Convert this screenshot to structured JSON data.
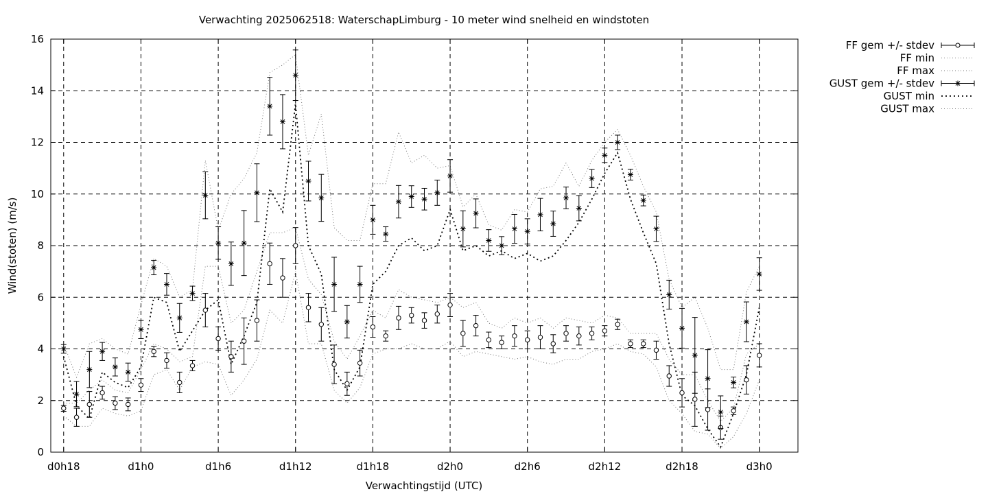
{
  "chart_data": {
    "type": "line",
    "title": "Verwachting 2025062518: WaterschapLimburg - 10 meter wind snelheid en windstoten",
    "xlabel": "Verwachtingstijd (UTC)",
    "ylabel": "Wind(stoten) (m/s)",
    "ylim": [
      0,
      16
    ],
    "yticks": [
      0,
      2,
      4,
      6,
      8,
      10,
      12,
      14,
      16
    ],
    "xlim": [
      -1,
      57
    ],
    "xticks": [
      {
        "x": 0,
        "label": "d0h18"
      },
      {
        "x": 6,
        "label": "d1h0"
      },
      {
        "x": 12,
        "label": "d1h6"
      },
      {
        "x": 18,
        "label": "d1h12"
      },
      {
        "x": 24,
        "label": "d1h18"
      },
      {
        "x": 30,
        "label": "d2h0"
      },
      {
        "x": 36,
        "label": "d2h6"
      },
      {
        "x": 42,
        "label": "d2h12"
      },
      {
        "x": 48,
        "label": "d2h18"
      },
      {
        "x": 54,
        "label": "d3h0"
      }
    ],
    "grid": true,
    "legend_position": "outside-top-right",
    "legend": [
      {
        "label": "FF gem +/- stdev"
      },
      {
        "label": "FF min"
      },
      {
        "label": "FF max"
      },
      {
        "label": "GUST gem +/- stdev"
      },
      {
        "label": "GUST min"
      },
      {
        "label": "GUST max"
      }
    ],
    "x": [
      0,
      1,
      2,
      3,
      4,
      5,
      6,
      7,
      8,
      9,
      10,
      11,
      12,
      13,
      14,
      15,
      16,
      17,
      18,
      19,
      20,
      21,
      22,
      23,
      24,
      25,
      26,
      27,
      28,
      29,
      30,
      31,
      32,
      33,
      34,
      35,
      36,
      37,
      38,
      39,
      40,
      41,
      42,
      43,
      44,
      45,
      46,
      47,
      48,
      49,
      50,
      51,
      52,
      53,
      54
    ],
    "series": [
      {
        "name": "FF gem +/- stdev",
        "values": [
          1.7,
          1.35,
          1.85,
          2.3,
          1.9,
          1.85,
          2.6,
          3.9,
          3.55,
          2.7,
          3.35,
          5.5,
          4.4,
          3.7,
          4.3,
          5.1,
          7.3,
          6.75,
          8.0,
          5.6,
          4.95,
          3.4,
          2.65,
          3.45,
          4.85,
          4.5,
          5.2,
          5.3,
          5.1,
          5.35,
          5.7,
          4.6,
          4.9,
          4.35,
          4.25,
          4.5,
          4.35,
          4.45,
          4.2,
          4.6,
          4.5,
          4.6,
          4.7,
          4.95,
          4.2,
          4.2,
          3.95,
          2.95,
          2.3,
          2.05,
          1.65,
          0.95,
          1.6,
          2.8,
          3.75
        ],
        "stdev": [
          0.12,
          0.35,
          0.5,
          0.25,
          0.25,
          0.25,
          0.25,
          0.2,
          0.3,
          0.4,
          0.2,
          0.65,
          0.45,
          0.6,
          0.9,
          0.8,
          0.8,
          0.75,
          0.7,
          0.55,
          0.65,
          0.75,
          0.45,
          0.5,
          0.4,
          0.2,
          0.45,
          0.3,
          0.3,
          0.35,
          0.45,
          0.5,
          0.4,
          0.3,
          0.25,
          0.4,
          0.35,
          0.45,
          0.35,
          0.3,
          0.35,
          0.25,
          0.2,
          0.2,
          0.15,
          0.15,
          0.35,
          0.4,
          0.55,
          1.05,
          0.8,
          0.45,
          0.15,
          0.55,
          0.45
        ]
      },
      {
        "name": "FF min",
        "values": [
          1.4,
          1.0,
          1.0,
          1.7,
          1.5,
          1.4,
          1.6,
          3.0,
          3.2,
          2.4,
          3.3,
          3.5,
          3.4,
          2.2,
          2.8,
          3.6,
          5.5,
          5.0,
          7.0,
          4.2,
          4.2,
          2.4,
          1.9,
          2.5,
          3.8,
          4.0,
          4.0,
          4.2,
          4.0,
          4.0,
          4.3,
          3.7,
          3.9,
          3.8,
          3.7,
          3.6,
          3.7,
          3.5,
          3.4,
          3.6,
          3.6,
          3.9,
          4.0,
          4.2,
          3.9,
          3.8,
          3.3,
          2.0,
          1.5,
          0.8,
          0.7,
          0.15,
          0.6,
          1.5,
          2.8
        ]
      },
      {
        "name": "FF max",
        "values": [
          1.9,
          1.9,
          2.4,
          2.8,
          2.4,
          2.3,
          3.2,
          4.2,
          4.0,
          3.5,
          3.7,
          7.2,
          7.2,
          5.0,
          5.5,
          7.0,
          8.5,
          8.5,
          8.7,
          6.7,
          6.1,
          4.3,
          3.6,
          4.5,
          5.5,
          5.2,
          6.3,
          6.0,
          5.9,
          5.8,
          6.0,
          5.6,
          5.8,
          5.0,
          4.8,
          5.2,
          5.0,
          5.2,
          4.8,
          5.2,
          5.1,
          5.0,
          5.3,
          5.2,
          4.6,
          4.6,
          4.6,
          3.6,
          3.0,
          3.0,
          2.0,
          1.2,
          1.7,
          3.8,
          4.2
        ]
      },
      {
        "name": "GUST gem +/- stdev",
        "values": [
          4.0,
          2.25,
          3.2,
          3.9,
          3.3,
          3.1,
          4.75,
          7.15,
          6.5,
          5.2,
          6.15,
          9.95,
          8.1,
          7.3,
          8.1,
          10.05,
          13.4,
          12.8,
          14.6,
          10.5,
          9.85,
          6.5,
          5.05,
          6.5,
          9.0,
          8.45,
          9.7,
          9.9,
          9.8,
          10.05,
          10.7,
          8.65,
          9.25,
          8.2,
          8.0,
          8.65,
          8.55,
          9.2,
          8.85,
          9.85,
          9.45,
          10.6,
          11.5,
          12.0,
          10.75,
          9.75,
          8.65,
          6.1,
          4.8,
          3.75,
          2.85,
          1.55,
          2.7,
          5.05,
          6.9
        ]
      },
      {
        "name": "GUST min",
        "values": [
          3.7,
          1.8,
          1.3,
          3.1,
          2.7,
          2.5,
          3.3,
          6.0,
          5.8,
          3.9,
          4.7,
          5.5,
          5.9,
          3.4,
          4.5,
          5.8,
          10.2,
          9.3,
          13.5,
          8.0,
          6.9,
          3.2,
          2.4,
          3.3,
          6.5,
          7.0,
          8.0,
          8.3,
          7.8,
          8.0,
          9.4,
          7.8,
          8.0,
          7.6,
          7.8,
          7.5,
          7.7,
          7.4,
          7.6,
          8.2,
          8.9,
          9.8,
          10.8,
          11.6,
          9.8,
          8.5,
          7.3,
          4.2,
          2.2,
          1.8,
          0.9,
          0.2,
          1.5,
          3.0,
          5.6
        ]
      },
      {
        "name": "GUST max",
        "values": [
          4.2,
          2.9,
          4.2,
          4.4,
          4.0,
          3.8,
          5.7,
          7.5,
          7.2,
          6.0,
          6.3,
          11.3,
          8.6,
          10.0,
          10.6,
          11.6,
          14.7,
          15.0,
          15.4,
          11.5,
          13.1,
          8.7,
          8.2,
          8.2,
          10.4,
          10.4,
          12.4,
          11.2,
          11.5,
          11.0,
          11.1,
          9.5,
          10.0,
          8.8,
          8.6,
          9.4,
          9.3,
          10.2,
          10.3,
          11.2,
          10.3,
          11.3,
          12.0,
          12.5,
          11.5,
          10.3,
          9.3,
          6.7,
          5.6,
          6.0,
          4.8,
          3.2,
          3.2,
          6.2,
          7.2
        ]
      }
    ]
  }
}
